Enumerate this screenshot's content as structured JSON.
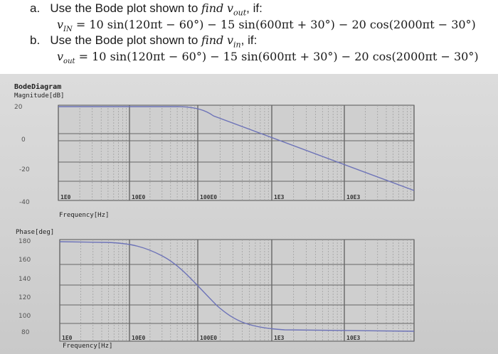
{
  "question": {
    "part_a": {
      "marker": "a.",
      "text_prefix": "Use the Bode plot shown to",
      "find_word": "find",
      "find_var": "v",
      "find_sub": "out",
      "text_suffix": ", if:",
      "eq_var": "v",
      "eq_sub": "IN",
      "eq_rhs": "= 10 sin(120πt − 60°) − 15 sin(600πt + 30°) − 20 cos(2000πt − 30°)"
    },
    "part_b": {
      "marker": "b.",
      "text_prefix": "Use the Bode plot shown to",
      "find_word": "find",
      "find_var": "v",
      "find_sub": "in",
      "text_suffix": ", if:",
      "eq_var": "v",
      "eq_sub": "out",
      "eq_rhs": "= 10 sin(120πt − 60°) − 15 sin(600πt + 30°) − 20 cos(2000πt − 30°)"
    }
  },
  "bode": {
    "title": "BodeDiagram",
    "magnitude": {
      "ylabel": "Magnitude[dB]",
      "yticks": [
        "20",
        "0",
        "-20",
        "-40"
      ],
      "xticks": [
        "1E0",
        "10E0",
        "100E0",
        "1E3",
        "10E3"
      ],
      "xlabel": "Frequency[Hz]"
    },
    "phase": {
      "ylabel": "Phase[deg]",
      "yticks": [
        "180",
        "160",
        "140",
        "120",
        "100",
        "80"
      ],
      "xticks": [
        "1E0",
        "10E0",
        "100E0",
        "1E3",
        "10E3"
      ],
      "xlabel": "Frequency[Hz]"
    }
  },
  "colors": {
    "curve": "#6d73b8",
    "grid": "#8a8a8a",
    "plot_bg": "#cfcfcf"
  }
}
